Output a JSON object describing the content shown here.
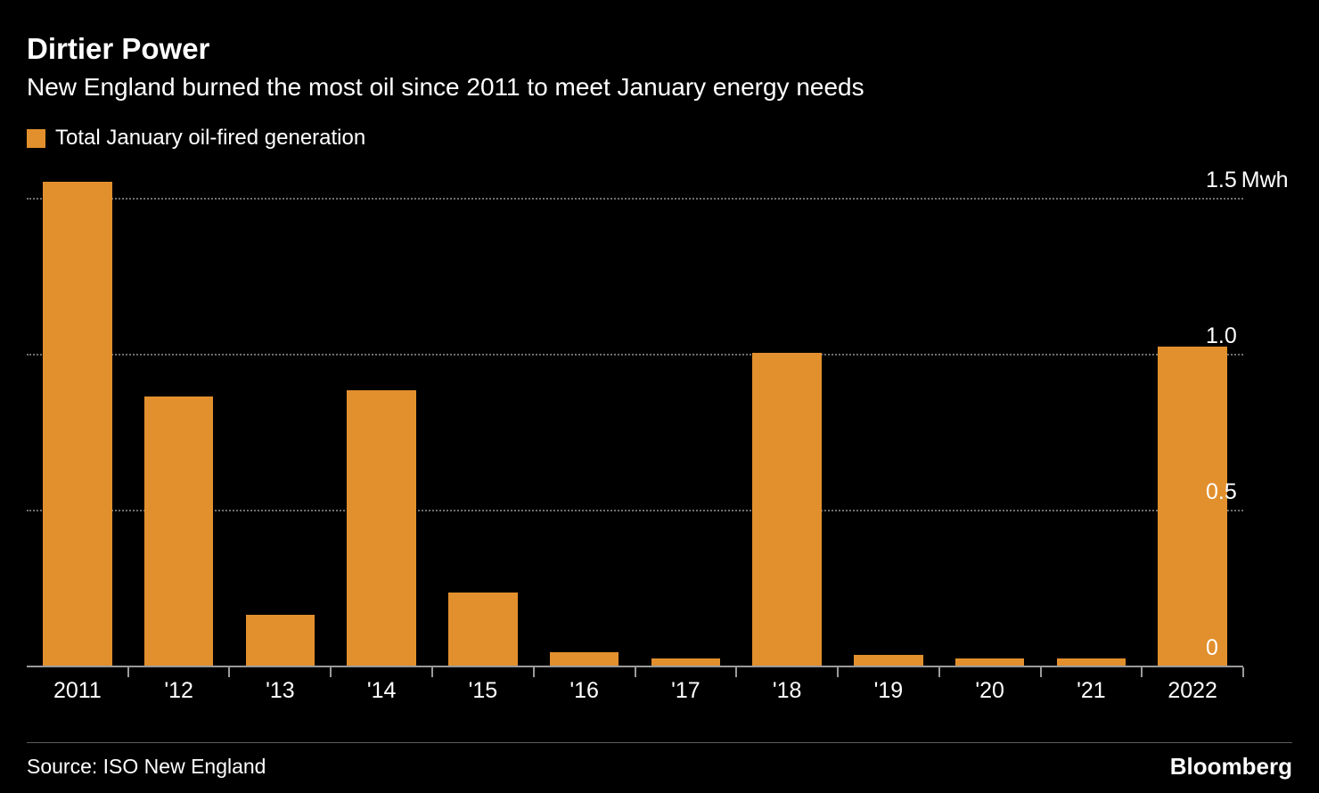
{
  "header": {
    "title": "Dirtier Power",
    "subtitle": "New England burned the most oil since 2011 to meet January energy needs"
  },
  "legend": {
    "label": "Total January oil-fired generation",
    "color": "#E2902D"
  },
  "chart_data": {
    "type": "bar",
    "title": "Dirtier Power",
    "subtitle": "New England burned the most oil since 2011 to meet January energy needs",
    "categories": [
      "2011",
      "'12",
      "'13",
      "'14",
      "'15",
      "'16",
      "'17",
      "'18",
      "'19",
      "'20",
      "'21",
      "2022"
    ],
    "values": [
      1.56,
      0.87,
      0.17,
      0.89,
      0.24,
      0.05,
      0.03,
      1.01,
      0.04,
      0.03,
      0.03,
      1.03
    ],
    "series_name": "Total January oil-fired generation",
    "unit": "Mwh",
    "xlabel": "",
    "ylabel": "",
    "ylim": [
      0,
      1.61
    ],
    "yticks": [
      {
        "value": 1.5,
        "label": "1.5",
        "suffix": "Mwh"
      },
      {
        "value": 1.0,
        "label": "1.0",
        "suffix": ""
      },
      {
        "value": 0.5,
        "label": "0.5",
        "suffix": ""
      },
      {
        "value": 0,
        "label": "0",
        "suffix": ""
      }
    ],
    "grid": "horizontal-dotted",
    "legend_position": "top-left",
    "bar_color": "#E2902D",
    "background": "#000000"
  },
  "footer": {
    "source": "Source: ISO New England",
    "brand": "Bloomberg"
  }
}
